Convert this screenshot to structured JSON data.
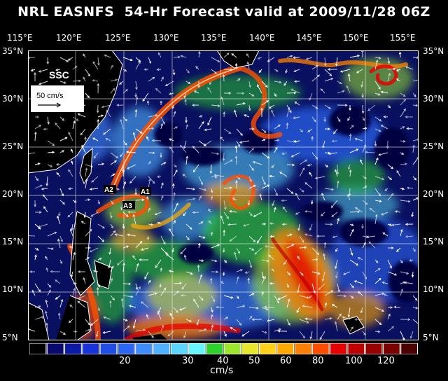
{
  "title": "NRL EASNFS  54-Hr Forecast valid at 2009/11/28 06Z",
  "lon_labels": [
    "115°E",
    "120°E",
    "125°E",
    "130°E",
    "135°E",
    "140°E",
    "145°E",
    "150°E",
    "155°E"
  ],
  "lat_labels": [
    "35°N",
    "30°N",
    "25°N",
    "20°N",
    "15°N",
    "10°N",
    "5°N"
  ],
  "map": {
    "product_label": "SSC",
    "scale_vector_label": "50 cm/s",
    "points": [
      "A1",
      "A2",
      "A3"
    ]
  },
  "colorbar": {
    "tick_labels": [
      "20",
      "30",
      "40",
      "50",
      "60",
      "80",
      "100",
      "120"
    ],
    "units": "cm/s",
    "colors": [
      "#000000",
      "#0a0a6e",
      "#0d1aa6",
      "#1a33d9",
      "#1f4de6",
      "#2b66f2",
      "#3f8cff",
      "#4fb1ff",
      "#5ad6ff",
      "#66f5ff",
      "#2ed12e",
      "#9de62e",
      "#e6e62e",
      "#ffd11a",
      "#ffaa00",
      "#ff8000",
      "#ff4d00",
      "#e60000",
      "#bf0000",
      "#990000",
      "#7a0000",
      "#4d0000"
    ]
  },
  "colors": {
    "background": "#000000",
    "ocean_base": "#0a1060",
    "land": "#ffffff"
  }
}
